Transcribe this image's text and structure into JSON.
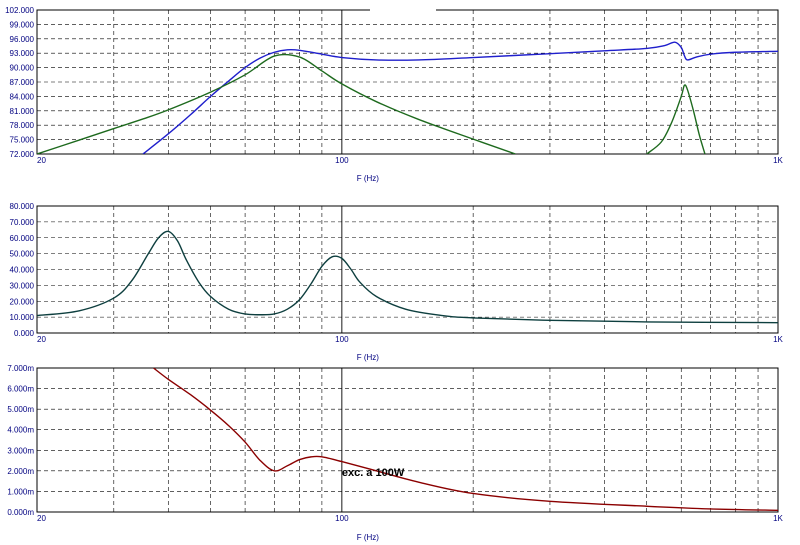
{
  "colors": {
    "frame": "#000000",
    "grid": "#000000",
    "labels": "#000080",
    "spl": "#1f1fcc",
    "green": "#1e6a1e",
    "impedance": "#0e3f3f",
    "excursion": "#8b0000"
  },
  "chart_data": [
    {
      "type": "line",
      "xscale": "log",
      "xlim": [
        20,
        1000
      ],
      "ylim": [
        72,
        102
      ],
      "xlabel": "F (Hz)",
      "ylabel": "",
      "x_ticks": [
        "20",
        "100",
        "1K"
      ],
      "y_ticks": [
        "102.000",
        "99.000",
        "96.000",
        "93.000",
        "90.000",
        "87.000",
        "84.000",
        "81.000",
        "78.000",
        "75.000",
        "72.000"
      ],
      "grid": true,
      "series": [
        {
          "color": "blue",
          "x": [
            35,
            40,
            45,
            50,
            55,
            60,
            65,
            70,
            75,
            80,
            90,
            100,
            120,
            150,
            200,
            300,
            400,
            500,
            550,
            580,
            600,
            610,
            620,
            650,
            700,
            800,
            1000
          ],
          "y": [
            72,
            76.2,
            80.2,
            84,
            87.2,
            90,
            92,
            93.2,
            93.7,
            93.6,
            92.8,
            92.1,
            91.6,
            91.6,
            92.1,
            92.9,
            93.5,
            94,
            94.6,
            95.3,
            94.2,
            92.5,
            91.6,
            92.2,
            92.8,
            93.2,
            93.4
          ]
        },
        {
          "color": "green",
          "x": [
            20,
            25,
            30,
            35,
            40,
            50,
            60,
            70,
            80,
            90,
            100,
            120,
            150,
            200,
            250
          ],
          "y": [
            72,
            74.9,
            77.3,
            79.3,
            81.2,
            84.9,
            88.5,
            92.4,
            92.2,
            89.3,
            86.6,
            82.9,
            79.2,
            75.1,
            72
          ]
        },
        {
          "color": "green",
          "x": [
            500,
            540,
            570,
            600,
            610,
            620,
            640,
            660,
            680
          ],
          "y": [
            72,
            74.5,
            78.5,
            84,
            86.3,
            85.4,
            81,
            76,
            72
          ]
        }
      ]
    },
    {
      "type": "line",
      "xscale": "log",
      "xlim": [
        20,
        1000
      ],
      "ylim": [
        0,
        80
      ],
      "xlabel": "F (Hz)",
      "ylabel": "",
      "x_ticks": [
        "20",
        "100",
        "1K"
      ],
      "y_ticks": [
        "80.000",
        "70.000",
        "60.000",
        "50.000",
        "40.000",
        "30.000",
        "20.000",
        "10.000",
        "0.000"
      ],
      "grid": true,
      "series": [
        {
          "color": "dark-teal",
          "x": [
            20,
            25,
            30,
            33,
            36,
            38,
            40,
            42,
            44,
            47,
            50,
            55,
            60,
            65,
            70,
            75,
            80,
            85,
            90,
            95,
            100,
            105,
            110,
            120,
            140,
            170,
            200,
            300,
            500,
            1000
          ],
          "y": [
            11,
            14,
            22,
            33,
            50,
            60,
            64,
            58,
            46,
            32,
            23,
            15,
            12,
            11.5,
            12,
            15,
            21,
            31,
            42,
            48,
            47,
            40,
            32,
            23,
            15,
            11,
            9.5,
            8,
            7,
            6.5
          ]
        }
      ]
    },
    {
      "type": "line",
      "xscale": "log",
      "xlim": [
        20,
        1000
      ],
      "ylim": [
        0,
        7
      ],
      "xlabel": "F (Hz)",
      "ylabel": "",
      "x_ticks": [
        "20",
        "100",
        "1K"
      ],
      "y_ticks": [
        "7.000m",
        "6.000m",
        "5.000m",
        "4.000m",
        "3.000m",
        "2.000m",
        "1.000m",
        "0.000m"
      ],
      "grid": true,
      "annotations": [
        {
          "text": "exc. a 100W",
          "x": 100,
          "y": 1.75
        }
      ],
      "series": [
        {
          "color": "dark-red",
          "x": [
            37,
            40,
            45,
            50,
            55,
            60,
            65,
            70,
            75,
            80,
            85,
            90,
            100,
            120,
            150,
            200,
            300,
            500,
            700,
            1000
          ],
          "y": [
            7,
            6.45,
            5.7,
            4.95,
            4.2,
            3.4,
            2.5,
            2.0,
            2.25,
            2.55,
            2.68,
            2.68,
            2.45,
            2.0,
            1.45,
            0.9,
            0.52,
            0.28,
            0.15,
            0.08
          ]
        }
      ]
    }
  ]
}
